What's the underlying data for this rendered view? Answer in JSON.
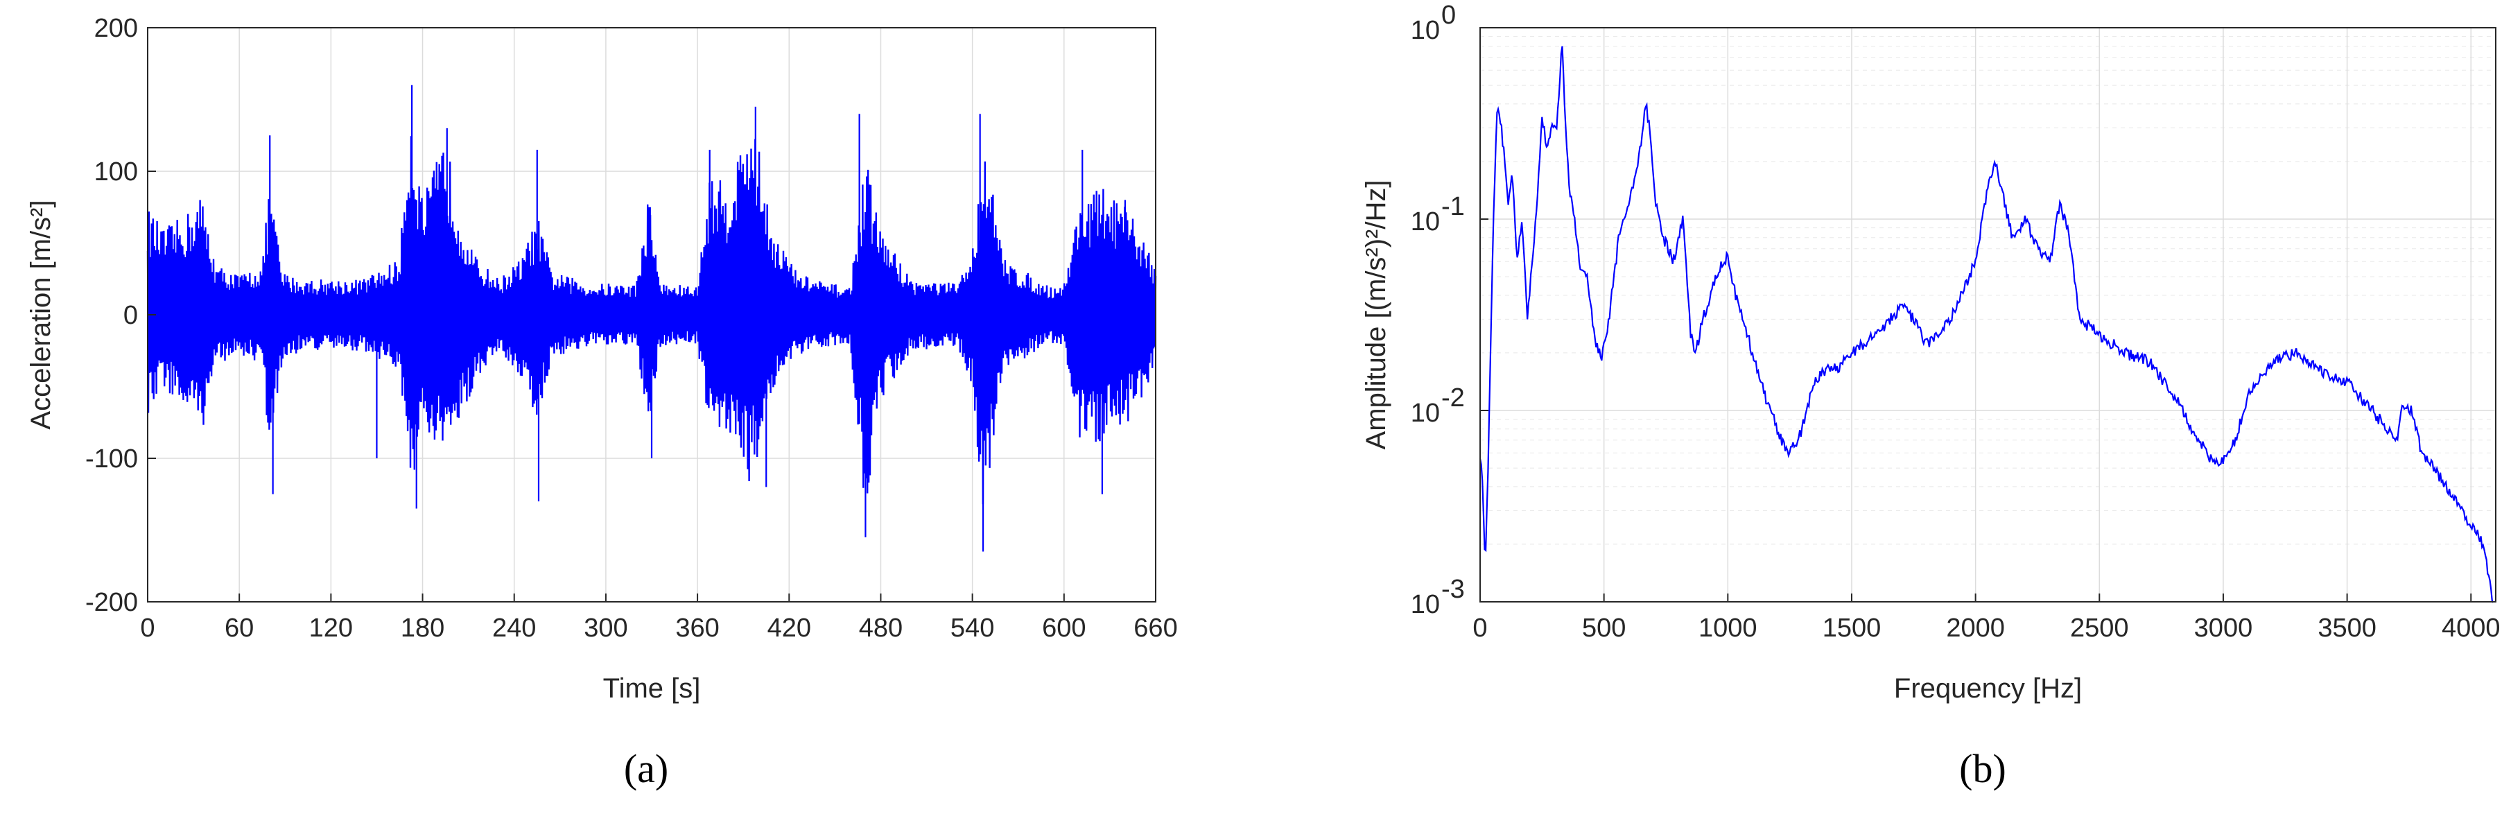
{
  "chart_data": [
    {
      "type": "line",
      "caption": "(a)",
      "xlabel": "Time [s]",
      "ylabel": "Acceleration [m/s²]",
      "xlim": [
        0,
        660
      ],
      "ylim": [
        -200,
        200
      ],
      "xticks": [
        0,
        60,
        120,
        180,
        240,
        300,
        360,
        420,
        480,
        540,
        600,
        660
      ],
      "yticks": [
        200,
        100,
        0,
        -100,
        -200
      ],
      "xtick_labels": [
        "0",
        "60",
        "120",
        "180",
        "240",
        "300",
        "360",
        "420",
        "480",
        "540",
        "600",
        "660"
      ],
      "ytick_labels": [
        "200",
        "100",
        "0",
        "-100",
        "-200"
      ],
      "grid": true,
      "series_color": "#0000ff",
      "envelope": {
        "t": [
          0,
          10,
          25,
          35,
          45,
          60,
          75,
          80,
          88,
          100,
          140,
          150,
          165,
          172,
          180,
          195,
          205,
          215,
          230,
          245,
          255,
          265,
          290,
          320,
          328,
          336,
          360,
          368,
          380,
          395,
          410,
          425,
          445,
          460,
          470,
          480,
          500,
          530,
          540,
          548,
          560,
          590,
          600,
          610,
          625,
          640,
          650,
          660
        ],
        "upper": [
          75,
          60,
          70,
          85,
          35,
          28,
          35,
          95,
          30,
          25,
          25,
          30,
          40,
          150,
          80,
          125,
          70,
          40,
          25,
          40,
          70,
          30,
          22,
          22,
          85,
          22,
          20,
          100,
          90,
          145,
          60,
          30,
          22,
          20,
          110,
          60,
          25,
          22,
          45,
          125,
          40,
          20,
          22,
          80,
          90,
          75,
          60,
          35
        ],
        "lower": [
          -75,
          -50,
          -70,
          -85,
          -35,
          -28,
          -35,
          -100,
          -35,
          -25,
          -25,
          -30,
          -40,
          -120,
          -90,
          -100,
          -75,
          -45,
          -25,
          -45,
          -75,
          -30,
          -22,
          -22,
          -80,
          -22,
          -20,
          -90,
          -80,
          -120,
          -50,
          -30,
          -22,
          -20,
          -140,
          -60,
          -25,
          -22,
          -50,
          -150,
          -40,
          -20,
          -22,
          -90,
          -90,
          -80,
          -60,
          -35
        ]
      },
      "peaks": [
        [
          80,
          125
        ],
        [
          82,
          -125
        ],
        [
          150,
          -100
        ],
        [
          173,
          160
        ],
        [
          176,
          -135
        ],
        [
          196,
          130
        ],
        [
          255,
          115
        ],
        [
          256,
          -130
        ],
        [
          329,
          75
        ],
        [
          330,
          -100
        ],
        [
          368,
          115
        ],
        [
          398,
          145
        ],
        [
          405,
          -120
        ],
        [
          466,
          140
        ],
        [
          470,
          -155
        ],
        [
          545,
          140
        ],
        [
          547,
          -165
        ],
        [
          612,
          115
        ],
        [
          625,
          -125
        ],
        [
          640,
          80
        ]
      ]
    },
    {
      "type": "line",
      "caption": "(b)",
      "xlabel": "Frequency [Hz]",
      "ylabel": "Amplitude [(m/s²)²/Hz]",
      "xlim": [
        0,
        4100
      ],
      "ylim": [
        0.001,
        1
      ],
      "yscale": "log",
      "xticks": [
        0,
        500,
        1000,
        1500,
        2000,
        2500,
        3000,
        3500,
        4000
      ],
      "xtick_labels": [
        "0",
        "500",
        "1000",
        "1500",
        "2000",
        "2500",
        "3000",
        "3500",
        "4000"
      ],
      "yticks": [
        1,
        0.1,
        0.01,
        0.001
      ],
      "ytick_base": "10",
      "ytick_exponents": [
        "0",
        "-1",
        "-2",
        "-3"
      ],
      "grid": true,
      "series_color": "#0000ff",
      "x": [
        0,
        10,
        20,
        30,
        40,
        55,
        70,
        85,
        100,
        115,
        130,
        150,
        170,
        190,
        210,
        230,
        250,
        270,
        290,
        310,
        330,
        345,
        360,
        380,
        400,
        430,
        460,
        490,
        520,
        560,
        600,
        640,
        670,
        690,
        710,
        740,
        780,
        820,
        850,
        870,
        900,
        950,
        1000,
        1030,
        1060,
        1100,
        1150,
        1200,
        1240,
        1270,
        1300,
        1340,
        1380,
        1450,
        1500,
        1600,
        1700,
        1750,
        1800,
        1900,
        2000,
        2050,
        2080,
        2100,
        2150,
        2200,
        2250,
        2300,
        2340,
        2380,
        2420,
        2500,
        2600,
        2700,
        2800,
        2900,
        2950,
        3000,
        3050,
        3100,
        3200,
        3300,
        3400,
        3500,
        3600,
        3700,
        3720,
        3760,
        3800,
        3850,
        3900,
        3950,
        4000,
        4050,
        4090
      ],
      "values": [
        0.006,
        0.004,
        0.0015,
        0.004,
        0.015,
        0.12,
        0.4,
        0.3,
        0.2,
        0.12,
        0.18,
        0.06,
        0.1,
        0.03,
        0.06,
        0.12,
        0.35,
        0.22,
        0.3,
        0.3,
        0.85,
        0.3,
        0.15,
        0.1,
        0.06,
        0.05,
        0.025,
        0.018,
        0.03,
        0.08,
        0.12,
        0.2,
        0.4,
        0.25,
        0.12,
        0.08,
        0.06,
        0.1,
        0.025,
        0.02,
        0.03,
        0.05,
        0.065,
        0.04,
        0.03,
        0.02,
        0.012,
        0.008,
        0.006,
        0.0065,
        0.008,
        0.013,
        0.016,
        0.017,
        0.02,
        0.025,
        0.035,
        0.03,
        0.022,
        0.03,
        0.06,
        0.15,
        0.2,
        0.15,
        0.08,
        0.1,
        0.07,
        0.06,
        0.12,
        0.08,
        0.03,
        0.025,
        0.02,
        0.018,
        0.012,
        0.007,
        0.0055,
        0.0055,
        0.007,
        0.012,
        0.018,
        0.02,
        0.016,
        0.014,
        0.01,
        0.007,
        0.01,
        0.01,
        0.006,
        0.005,
        0.004,
        0.0032,
        0.0025,
        0.002,
        0.001
      ]
    }
  ]
}
